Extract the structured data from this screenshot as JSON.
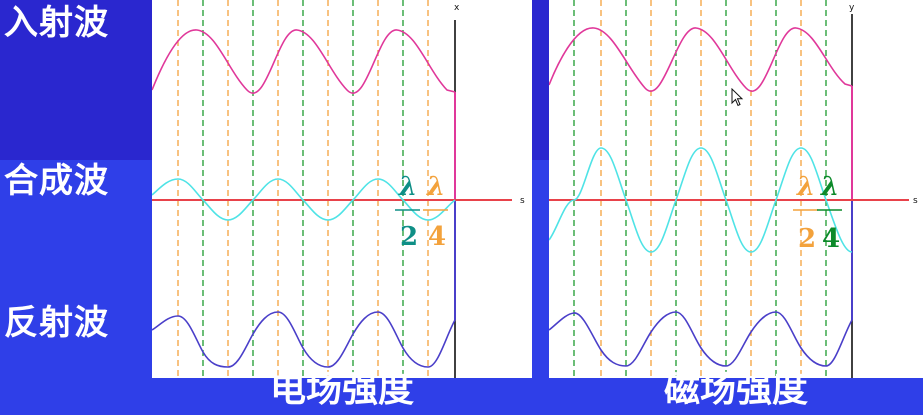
{
  "rows": {
    "incident": "入射波",
    "combined": "合成波",
    "reflected": "反射波"
  },
  "panels": [
    {
      "id": "electric",
      "caption": "电场强度",
      "axis_top": "x",
      "axis_right": "s",
      "frac_left": {
        "num": "λ",
        "den": "2",
        "color": "#0f8f86"
      },
      "frac_right": {
        "num": "λ",
        "den": "4",
        "color": "#f3a23c"
      }
    },
    {
      "id": "magnetic",
      "caption": "磁场强度",
      "axis_top": "y",
      "axis_right": "s",
      "frac_left": {
        "num": "λ",
        "den": "2",
        "color": "#f3a23c"
      },
      "frac_right": {
        "num": "λ",
        "den": "4",
        "color": "#0c8a2a"
      }
    }
  ],
  "colors": {
    "incident": "#e0389a",
    "combined": "#4fe3e6",
    "reflected": "#4a3fc9",
    "axis": "#e8424a",
    "orange_dash": "#f3a23c",
    "green_dash": "#1c9a2e"
  }
}
